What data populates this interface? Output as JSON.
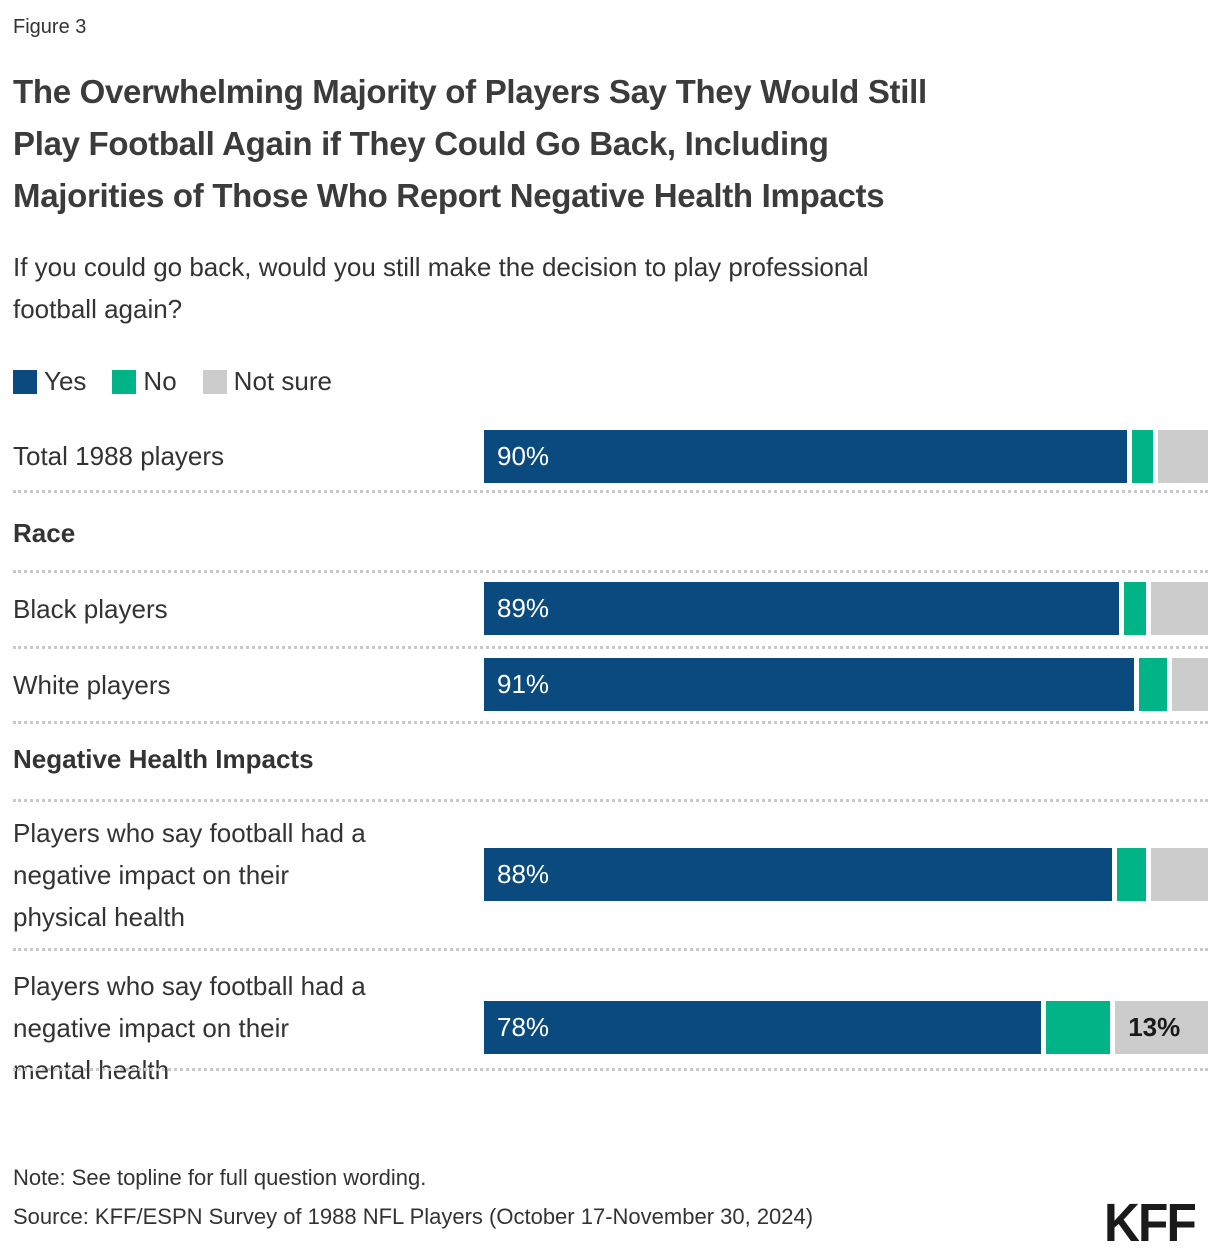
{
  "figure_label": "Figure 3",
  "title_lines": [
    "The Overwhelming Majority of Players Say They Would Still",
    "Play Football Again if They Could Go Back, Including",
    "Majorities of Those Who Report Negative Health Impacts"
  ],
  "subtitle_lines": [
    "If you could go back, would you still make the decision to play professional",
    "football again?"
  ],
  "legend": {
    "items": [
      {
        "label": "Yes",
        "color": "#0b4a7f"
      },
      {
        "label": "No",
        "color": "#00b487"
      },
      {
        "label": "Not sure",
        "color": "#cccccc"
      }
    ],
    "position": "top-left"
  },
  "sections": [
    {
      "label": "Race"
    },
    {
      "label": "Negative Health Impacts"
    }
  ],
  "chart_data": {
    "type": "bar",
    "orientation": "horizontal-stacked",
    "series_names": [
      "Yes",
      "No",
      "Not sure"
    ],
    "xlim": [
      0,
      100
    ],
    "grid": false,
    "categories": [
      "Total 1988 players",
      "Black players",
      "White players",
      "Players who say football had a negative impact on their physical health",
      "Players who say football had a negative impact on their mental health"
    ],
    "rows": [
      {
        "label_lines": [
          "Total 1988 players"
        ],
        "yes": 90,
        "no": 3,
        "not_sure": 7,
        "yes_label": "90%"
      },
      {
        "label_lines": [
          "Black players"
        ],
        "yes": 89,
        "no": 3,
        "not_sure": 8,
        "yes_label": "89%"
      },
      {
        "label_lines": [
          "White players"
        ],
        "yes": 91,
        "no": 4,
        "not_sure": 5,
        "yes_label": "91%"
      },
      {
        "label_lines": [
          "Players who say football had a",
          "negative impact on their",
          "physical health"
        ],
        "yes": 88,
        "no": 4,
        "not_sure": 8,
        "yes_label": "88%"
      },
      {
        "label_lines": [
          "Players who say football had a",
          "negative impact on their",
          "mental health"
        ],
        "yes": 78,
        "no": 9,
        "not_sure": 13,
        "yes_label": "78%",
        "not_sure_label": "13%"
      }
    ]
  },
  "note": "Note: See topline for full question wording.",
  "source": "Source: KFF/ESPN Survey of 1988 NFL Players (October 17-November 30, 2024)",
  "logo": "KFF"
}
